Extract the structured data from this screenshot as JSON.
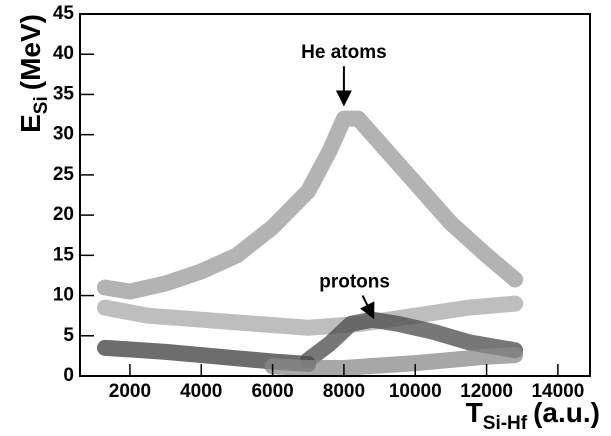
{
  "chart_data": {
    "type": "density",
    "x_label": {
      "main": "T",
      "sub": "Si-Hf",
      "unit": "(a.u.)"
    },
    "y_label": {
      "main": "E",
      "sub": "Si",
      "unit": "(MeV)"
    },
    "xlim": [
      600,
      14900
    ],
    "ylim": [
      0,
      45
    ],
    "xticks": [
      2000,
      4000,
      6000,
      8000,
      10000,
      12000,
      14000
    ],
    "yticks": [
      0,
      5,
      10,
      15,
      20,
      25,
      30,
      35,
      40,
      45
    ],
    "series": [
      {
        "color": "#9a9a9a",
        "x": [
          1300,
          2000,
          3000,
          4000,
          5000,
          6000,
          7000,
          7600,
          8000,
          8400,
          9000,
          10000,
          11000,
          12000,
          12800
        ],
        "values": [
          11,
          10.5,
          11.5,
          13,
          15,
          18.5,
          23,
          28,
          32,
          32,
          29,
          24,
          19,
          15,
          12
        ]
      },
      {
        "color": "#a8a8a8",
        "x": [
          1300,
          2500,
          4000,
          5500,
          7000,
          8500,
          10000,
          11500,
          12800
        ],
        "values": [
          8.5,
          7.5,
          7,
          6.5,
          6,
          6.5,
          7.5,
          8.5,
          9
        ]
      },
      {
        "color": "#3c3c3c",
        "x": [
          1300,
          2000,
          3000,
          4000,
          5000,
          6000,
          7000
        ],
        "values": [
          3.5,
          3.3,
          3,
          2.6,
          2.2,
          1.8,
          1.5
        ]
      },
      {
        "color": "#4a4a4a",
        "x": [
          7000,
          7600,
          8200,
          8800,
          9500,
          10500,
          11500,
          12800
        ],
        "values": [
          2,
          4,
          6.5,
          7,
          6.5,
          5.5,
          4.2,
          3.2
        ]
      },
      {
        "color": "#8a8a8a",
        "x": [
          6000,
          7000,
          8000,
          9000,
          10000,
          11000,
          12000,
          12800
        ],
        "values": [
          1.2,
          1,
          1,
          1.3,
          1.6,
          2,
          2.4,
          2.6
        ]
      }
    ],
    "annotations": [
      {
        "text": "He atoms",
        "x": 8000,
        "y": 39.5,
        "arrow_to": [
          8000,
          34
        ]
      },
      {
        "text": "protons",
        "x": 8300,
        "y": 11,
        "arrow_to": [
          8800,
          7.5
        ]
      }
    ]
  }
}
